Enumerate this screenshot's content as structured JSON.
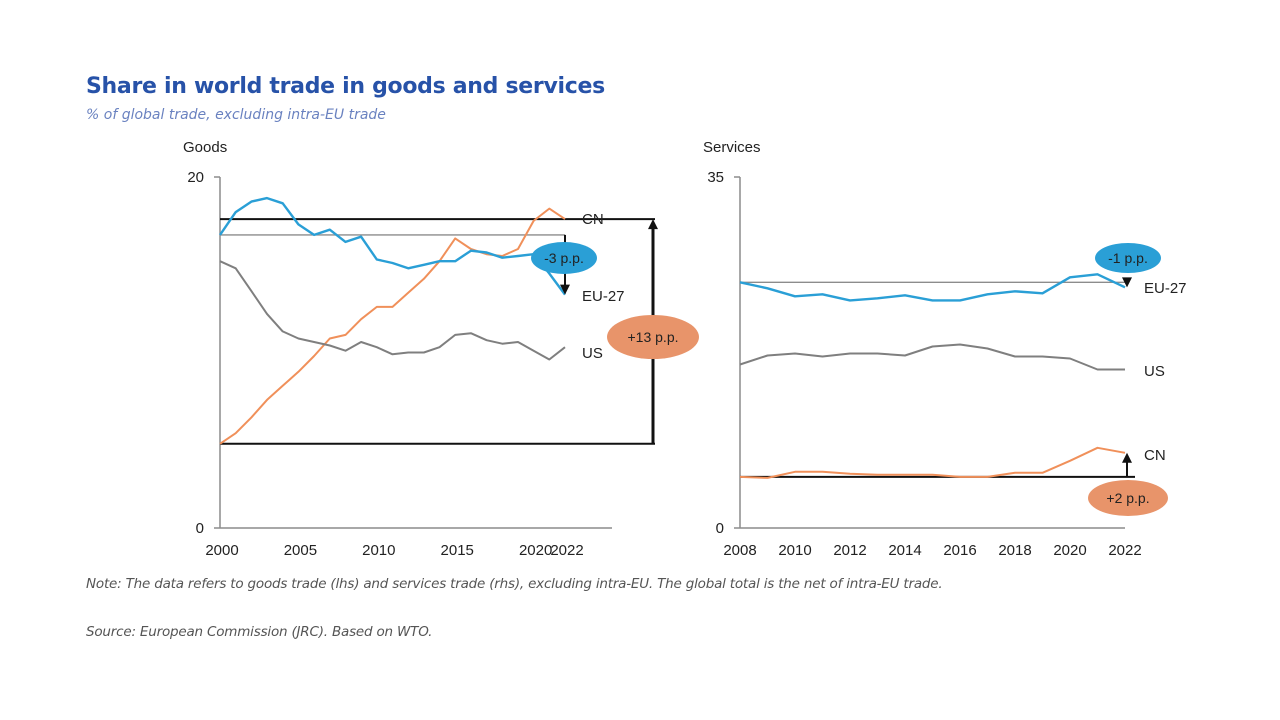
{
  "header": {
    "title": "Share in world trade in goods and services",
    "subtitle": "% of global trade, excluding intra-EU trade"
  },
  "footer": {
    "note": "Note: The data refers to goods trade (lhs) and services trade (rhs), excluding intra-EU. The global total is the net of intra-EU trade.",
    "source": "Source: European Commission (JRC). Based on WTO."
  },
  "colors": {
    "EU-27": "#2a9fd6",
    "US": "#7f7f7f",
    "CN": "#f0905a"
  },
  "chart_data": [
    {
      "type": "line",
      "title": "Goods",
      "xlabel": "",
      "ylabel": "",
      "x": [
        2000,
        2001,
        2002,
        2003,
        2004,
        2005,
        2006,
        2007,
        2008,
        2009,
        2010,
        2011,
        2012,
        2013,
        2014,
        2015,
        2016,
        2017,
        2018,
        2019,
        2020,
        2021,
        2022
      ],
      "xticks": [
        "2000",
        "2005",
        "2010",
        "2015",
        "2020",
        "2022"
      ],
      "yticks": [
        "0",
        "20"
      ],
      "ylim": [
        0,
        20
      ],
      "xlim": [
        2000,
        2022
      ],
      "grid": false,
      "series": [
        {
          "name": "EU-27",
          "label": "EU-27",
          "values": [
            16.7,
            18.0,
            18.6,
            18.8,
            18.5,
            17.3,
            16.7,
            17.0,
            16.3,
            16.6,
            15.3,
            15.1,
            14.8,
            15.0,
            15.2,
            15.2,
            15.8,
            15.7,
            15.4,
            15.5,
            15.6,
            14.5,
            13.3
          ]
        },
        {
          "name": "US",
          "label": "US",
          "values": [
            15.2,
            14.8,
            13.5,
            12.2,
            11.2,
            10.8,
            10.6,
            10.4,
            10.1,
            10.6,
            10.3,
            9.9,
            10.0,
            10.0,
            10.3,
            11.0,
            11.1,
            10.7,
            10.5,
            10.6,
            10.1,
            9.6,
            10.3
          ]
        },
        {
          "name": "CN",
          "label": "CN",
          "values": [
            4.8,
            5.4,
            6.3,
            7.3,
            8.1,
            8.9,
            9.8,
            10.8,
            11.0,
            11.9,
            12.6,
            12.6,
            13.4,
            14.2,
            15.2,
            16.5,
            15.9,
            15.6,
            15.5,
            15.9,
            17.5,
            18.2,
            17.6
          ]
        }
      ],
      "reference_lines": [
        {
          "label": "EU-27 2000 level",
          "value": 16.7
        },
        {
          "label": "CN 2000 level",
          "value": 4.8
        },
        {
          "label": "CN 2022 level",
          "value": 17.6
        }
      ],
      "annotations": [
        {
          "text": "-3 p.p.",
          "series": "EU-27",
          "from": 16.7,
          "to": 13.3,
          "color": "#2a9fd6"
        },
        {
          "text": "+13 p.p.",
          "series": "CN",
          "from": 4.8,
          "to": 17.6,
          "color": "#e8946a"
        }
      ]
    },
    {
      "type": "line",
      "title": "Services",
      "xlabel": "",
      "ylabel": "",
      "x": [
        2008,
        2009,
        2010,
        2011,
        2012,
        2013,
        2014,
        2015,
        2016,
        2017,
        2018,
        2019,
        2020,
        2021,
        2022
      ],
      "xticks": [
        "2008",
        "2010",
        "2012",
        "2014",
        "2016",
        "2018",
        "2020",
        "2022"
      ],
      "yticks": [
        "0",
        "35"
      ],
      "ylim": [
        0,
        35
      ],
      "xlim": [
        2008,
        2022
      ],
      "grid": false,
      "series": [
        {
          "name": "EU-27",
          "label": "EU-27",
          "values": [
            24.5,
            23.9,
            23.1,
            23.3,
            22.7,
            22.9,
            23.2,
            22.7,
            22.7,
            23.3,
            23.6,
            23.4,
            25.0,
            25.3,
            24.0
          ]
        },
        {
          "name": "US",
          "label": "US",
          "values": [
            16.3,
            17.2,
            17.4,
            17.1,
            17.4,
            17.4,
            17.2,
            18.1,
            18.3,
            17.9,
            17.1,
            17.1,
            16.9,
            15.8,
            15.8
          ]
        },
        {
          "name": "CN",
          "label": "CN",
          "values": [
            5.1,
            5.0,
            5.6,
            5.6,
            5.4,
            5.3,
            5.3,
            5.3,
            5.1,
            5.1,
            5.5,
            5.5,
            6.7,
            8.0,
            7.5
          ]
        }
      ],
      "reference_lines": [
        {
          "label": "EU-27 2008 level",
          "value": 24.5
        },
        {
          "label": "CN 2008 level",
          "value": 5.1
        }
      ],
      "annotations": [
        {
          "text": "-1 p.p.",
          "series": "EU-27",
          "from": 24.5,
          "to": 24.0,
          "color": "#2a9fd6"
        },
        {
          "text": "+2 p.p.",
          "series": "CN",
          "from": 5.1,
          "to": 7.5,
          "color": "#e8946a"
        }
      ]
    }
  ]
}
